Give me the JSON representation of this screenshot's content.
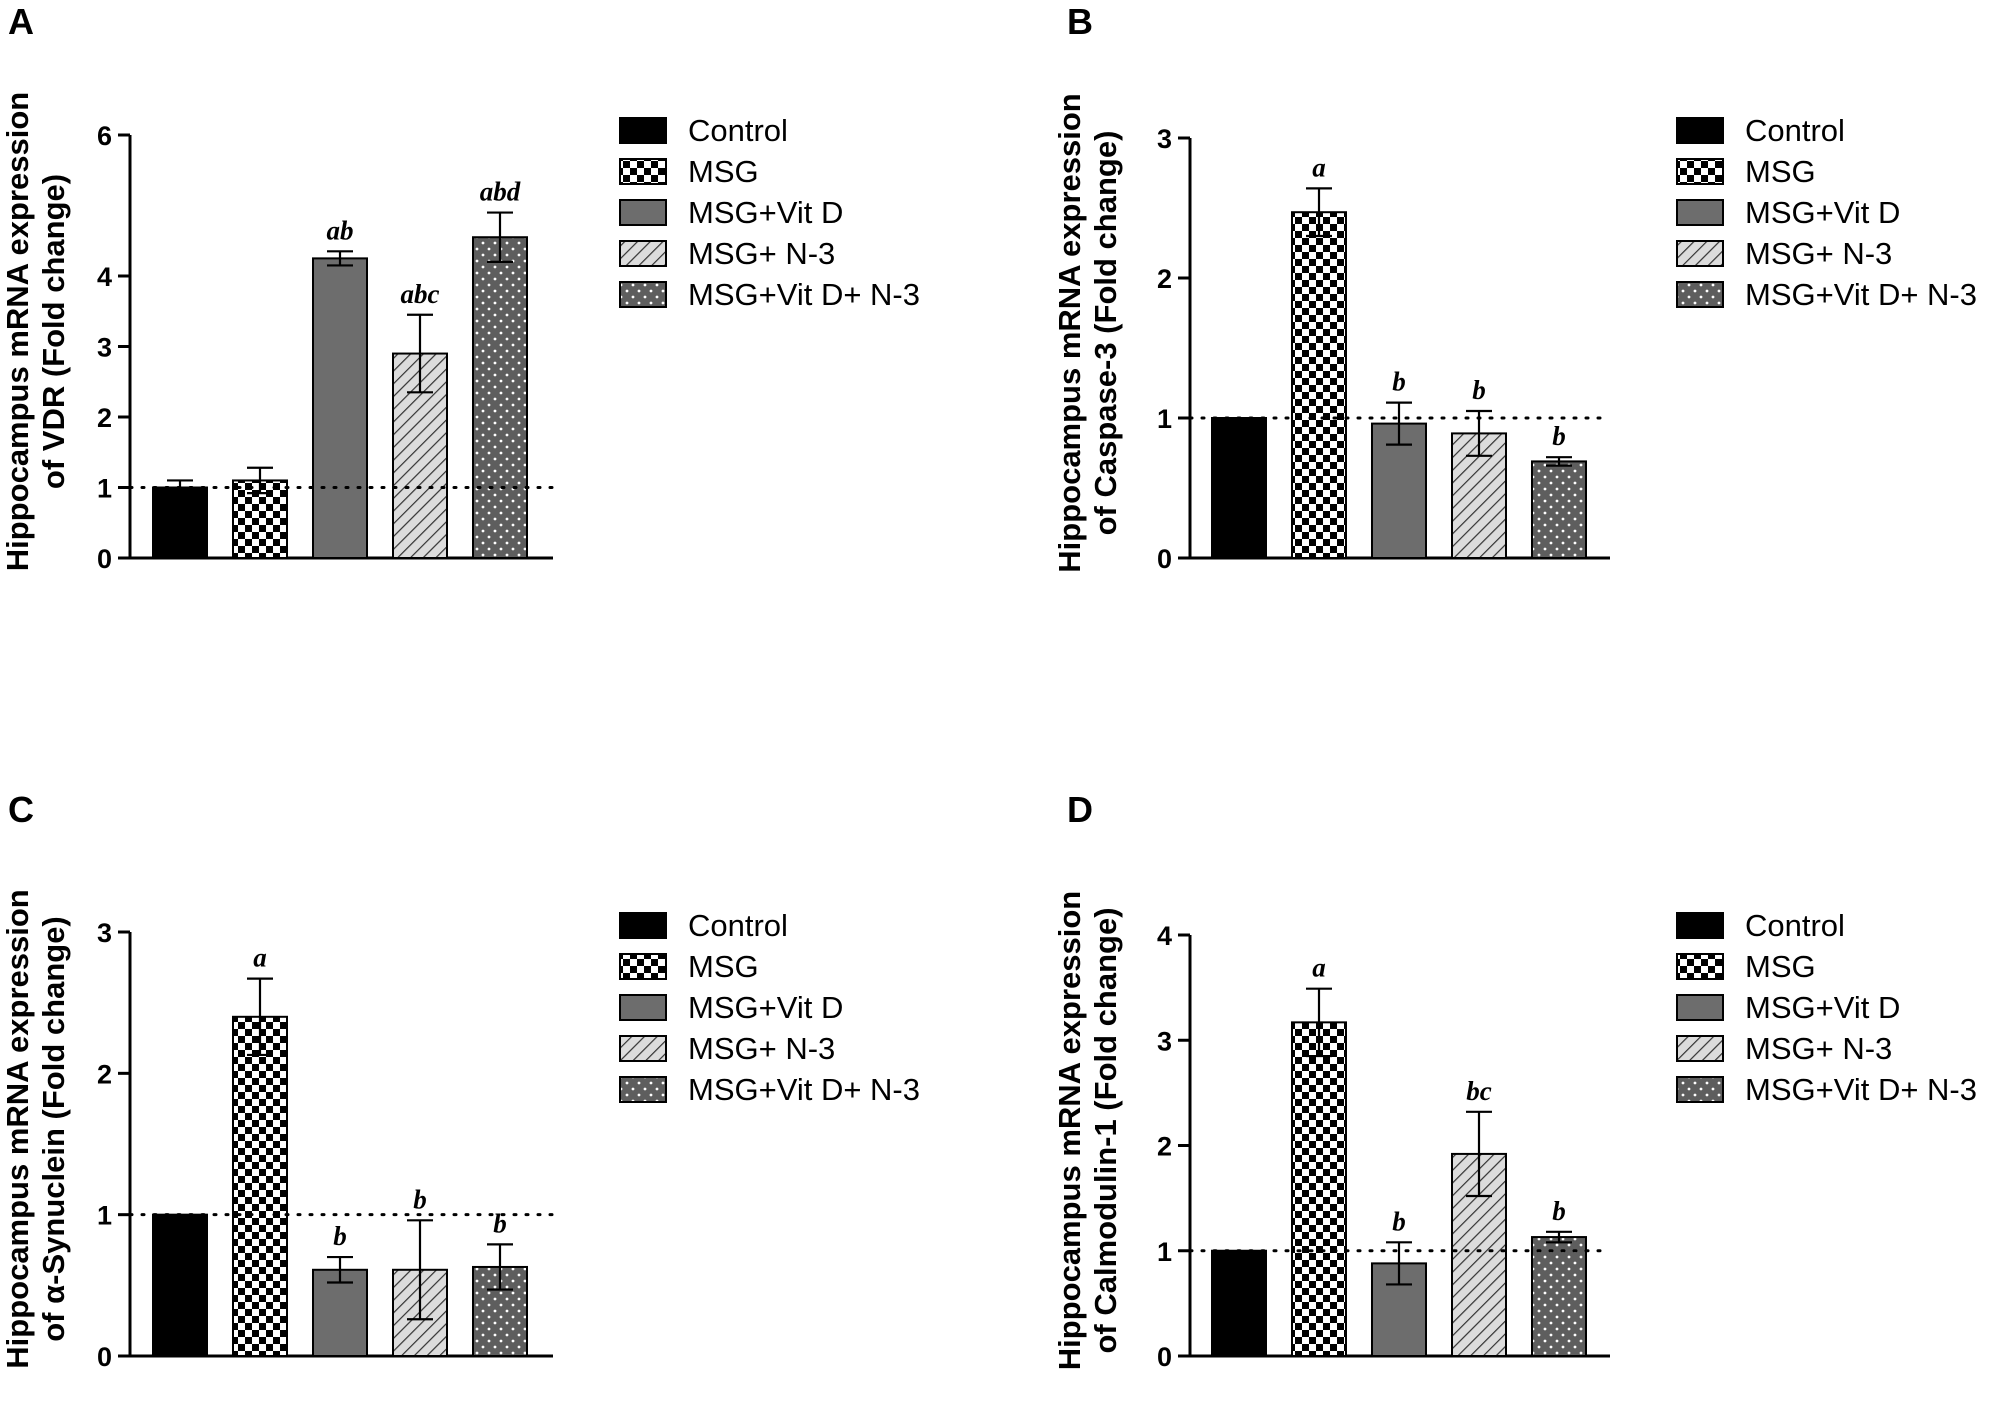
{
  "legend": [
    "Control",
    "MSG",
    "MSG+Vit D",
    "MSG+ N-3",
    "MSG+Vit D+ N-3"
  ],
  "colors": {
    "control": "#000000",
    "vitd": "#6d6d6d",
    "axis": "#000000"
  },
  "chart_data": [
    {
      "panel": "A",
      "type": "bar",
      "ylabel_line1": "Hippocampus mRNA expression",
      "ylabel_line2": "of VDR (Fold change)",
      "categories": [
        "Control",
        "MSG",
        "MSG+Vit D",
        "MSG+ N-3",
        "MSG+Vit D+ N-3"
      ],
      "values": [
        1.0,
        1.1,
        4.25,
        2.9,
        4.55
      ],
      "errors": [
        0.1,
        0.18,
        0.1,
        0.55,
        0.35
      ],
      "significance": [
        "",
        "",
        "ab",
        "abc",
        "abd"
      ],
      "yticks": [
        0,
        1,
        2,
        3,
        4,
        6
      ],
      "ylim": [
        0,
        6
      ],
      "reference_line": 1
    },
    {
      "panel": "B",
      "type": "bar",
      "ylabel_line1": "Hippocampus mRNA expression",
      "ylabel_line2": "of Caspase-3 (Fold change)",
      "categories": [
        "Control",
        "MSG",
        "MSG+Vit D",
        "MSG+ N-3",
        "MSG+Vit D+ N-3"
      ],
      "values": [
        1.0,
        2.47,
        0.96,
        0.89,
        0.69
      ],
      "errors": [
        0,
        0.17,
        0.15,
        0.16,
        0.03
      ],
      "significance": [
        "",
        "a",
        "b",
        "b",
        "b"
      ],
      "yticks": [
        0,
        1,
        2,
        3
      ],
      "ylim": [
        0,
        3
      ],
      "reference_line": 1
    },
    {
      "panel": "C",
      "type": "bar",
      "ylabel_line1": "Hippocampus mRNA expression",
      "ylabel_line2": "of α-Synuclein (Fold change)",
      "categories": [
        "Control",
        "MSG",
        "MSG+Vit D",
        "MSG+ N-3",
        "MSG+Vit D+ N-3"
      ],
      "values": [
        1.0,
        2.4,
        0.61,
        0.61,
        0.63
      ],
      "errors": [
        0,
        0.27,
        0.09,
        0.35,
        0.16
      ],
      "significance": [
        "",
        "a",
        "b",
        "b",
        "b"
      ],
      "yticks": [
        0,
        1,
        2,
        3
      ],
      "ylim": [
        0,
        3
      ],
      "reference_line": 1
    },
    {
      "panel": "D",
      "type": "bar",
      "ylabel_line1": "Hippocampus mRNA expression",
      "ylabel_line2": "of Calmodulin-1  (Fold change)",
      "categories": [
        "Control",
        "MSG",
        "MSG+Vit D",
        "MSG+ N-3",
        "MSG+Vit D+ N-3"
      ],
      "values": [
        1.0,
        3.17,
        0.88,
        1.92,
        1.13
      ],
      "errors": [
        0,
        0.32,
        0.2,
        0.4,
        0.05
      ],
      "significance": [
        "",
        "a",
        "b",
        "bc",
        "b"
      ],
      "yticks": [
        0,
        1,
        2,
        3,
        4
      ],
      "ylim": [
        0,
        4
      ],
      "reference_line": 1
    }
  ]
}
